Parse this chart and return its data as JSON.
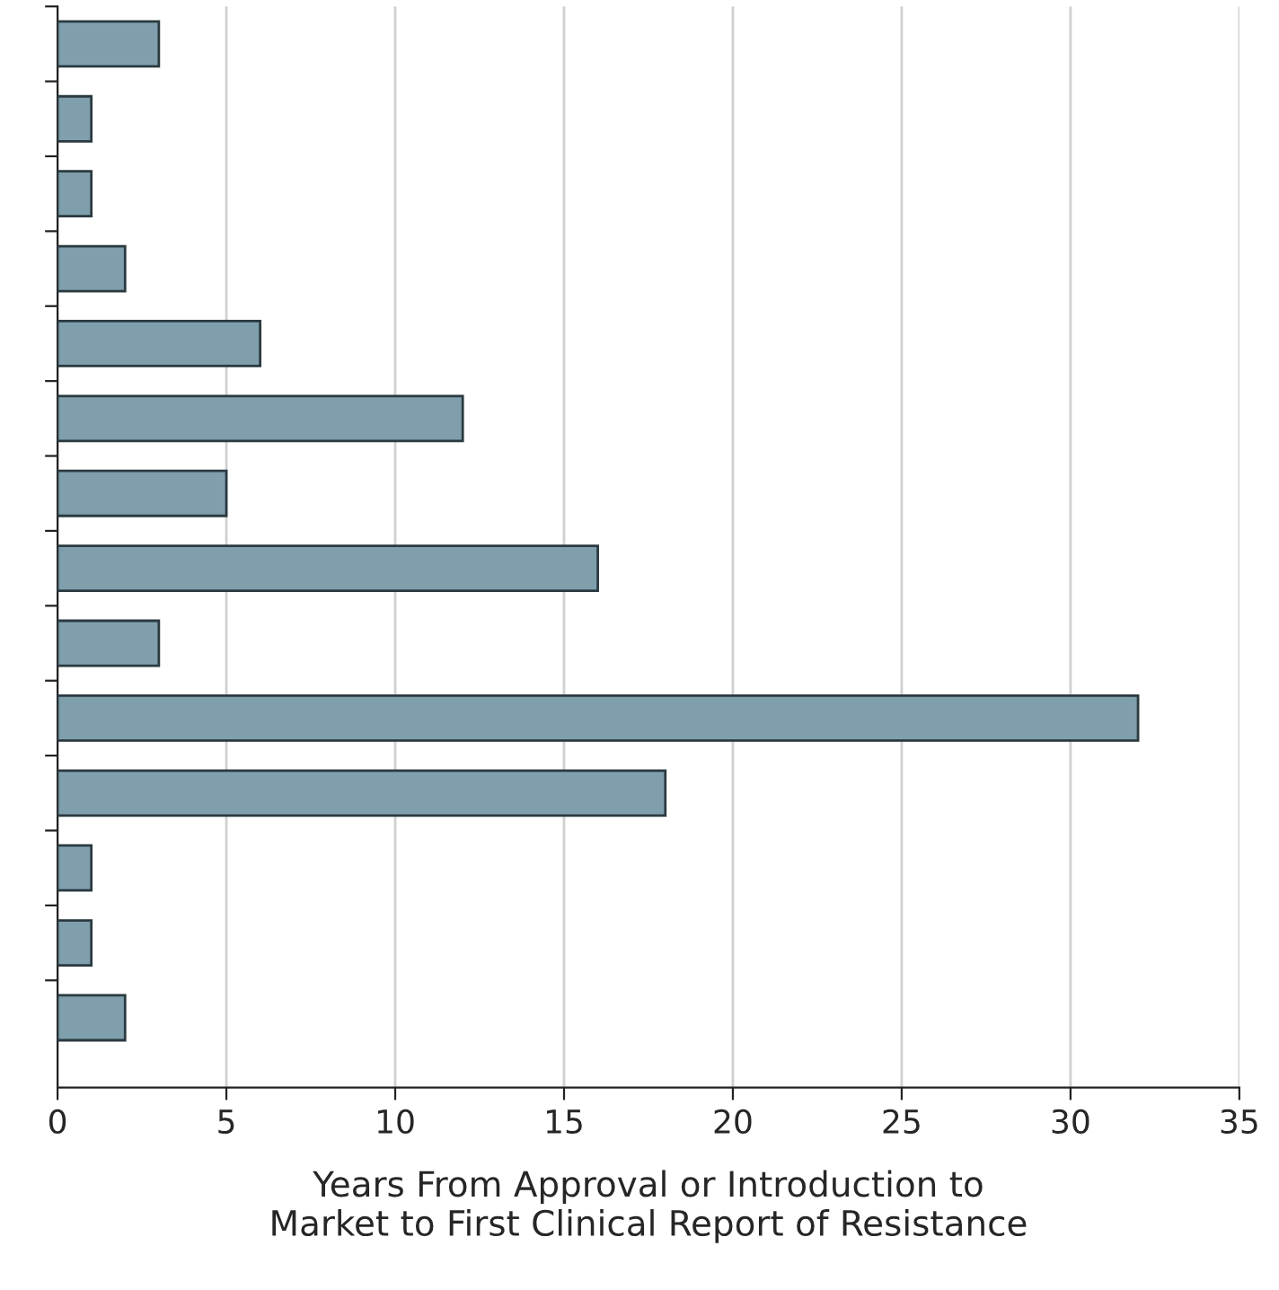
{
  "chart_data": {
    "type": "bar",
    "orientation": "horizontal",
    "xlabel": "Years From Approval or Introduction to\nMarket to First Clinical Report of Resistance",
    "categories": [
      null,
      null,
      null,
      null,
      null,
      null,
      null,
      null,
      null,
      null,
      null,
      null,
      null,
      null
    ],
    "values": [
      3,
      1,
      1,
      2,
      6,
      12,
      5,
      16,
      3,
      32,
      18,
      1,
      1,
      2
    ],
    "color": "#7f9fad",
    "xlim": [
      0,
      35
    ],
    "xticks": [
      0,
      5,
      10,
      15,
      20,
      25,
      30,
      35
    ],
    "grid": "x",
    "legend": false
  }
}
